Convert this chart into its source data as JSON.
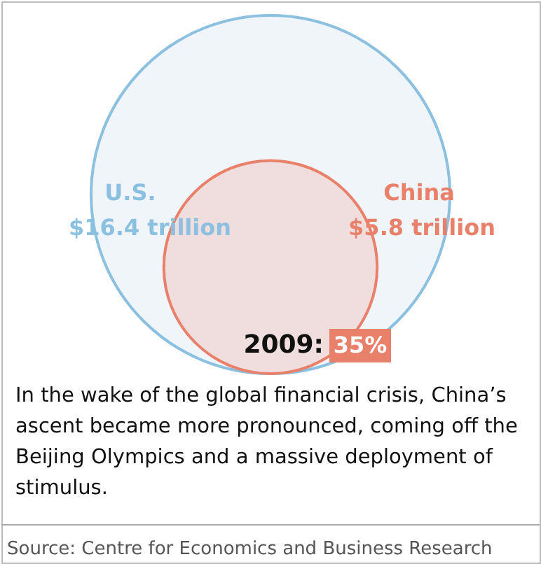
{
  "chart_data": {
    "type": "other",
    "categories": [
      "U.S.",
      "China"
    ],
    "values": [
      16.4,
      5.8
    ],
    "value_labels": [
      "$16.4 trillion",
      "$5.8 trillion"
    ],
    "colors": [
      "#8cc0e0",
      "#e8806a"
    ],
    "annotations": [
      "2009:",
      "35%",
      "In the wake of the global financial crisis, China’s ascent became more pronounced, coming off the Beijing Olympics and a massive deployment of stimulus.",
      "Source: Centre for Economics and Business Research"
    ]
  }
}
